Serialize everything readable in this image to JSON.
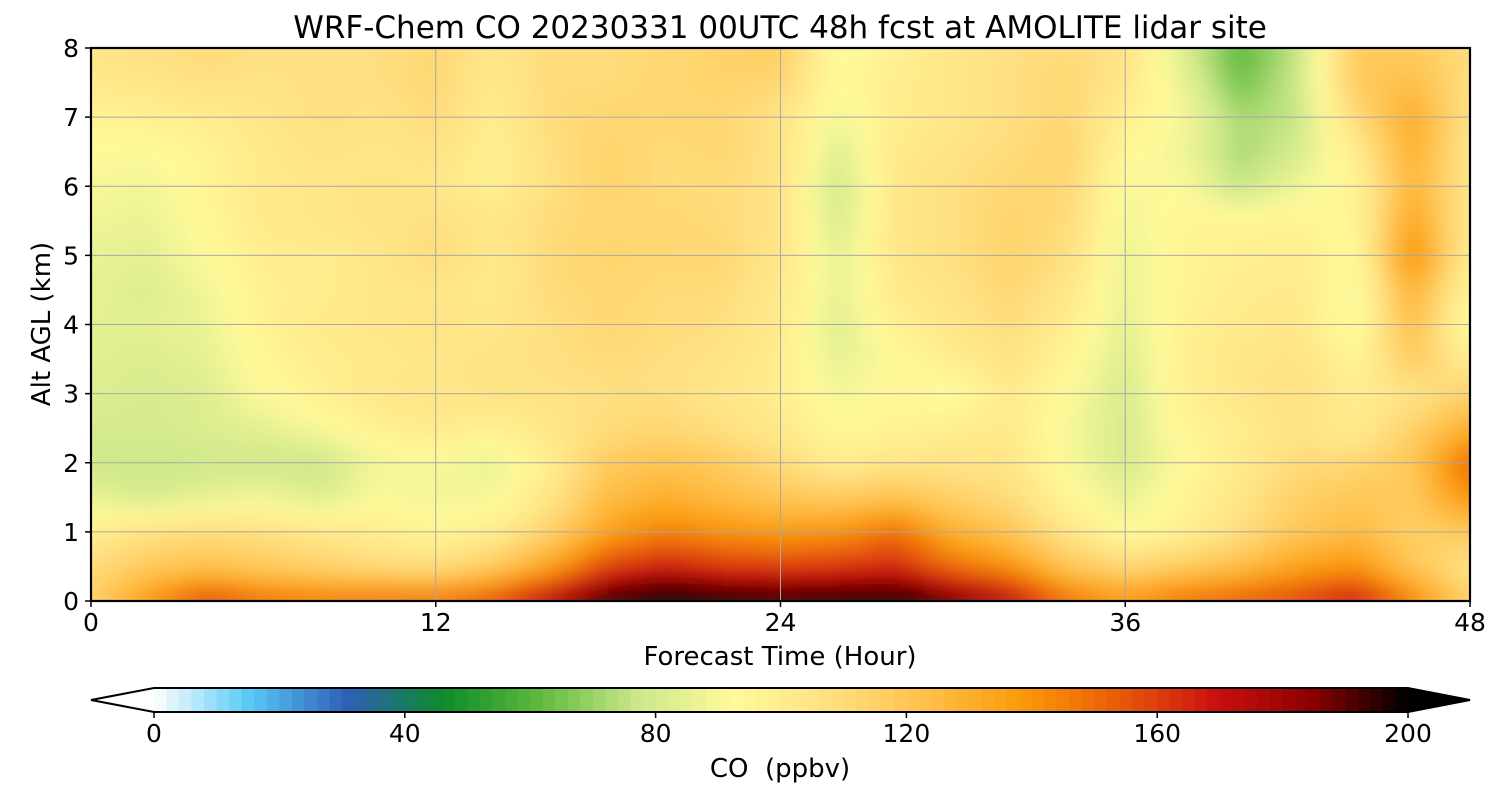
{
  "chart_data": {
    "type": "heatmap",
    "title": "WRF-Chem CO  20230331 00UTC 48h fcst at AMOLITE lidar site",
    "xlabel": "Forecast Time (Hour)",
    "ylabel": "Alt AGL (km)",
    "xlim": [
      0,
      48
    ],
    "ylim": [
      0,
      8
    ],
    "x_ticks": [
      0,
      12,
      24,
      36,
      48
    ],
    "y_ticks": [
      0,
      1,
      2,
      3,
      4,
      5,
      6,
      7,
      8
    ],
    "grid": true,
    "x": [
      0,
      2,
      4,
      6,
      8,
      10,
      12,
      14,
      16,
      18,
      20,
      22,
      24,
      26,
      28,
      30,
      32,
      34,
      36,
      38,
      40,
      42,
      44,
      46,
      48
    ],
    "y": [
      0,
      0.5,
      1,
      1.5,
      2,
      2.5,
      3,
      3.5,
      4,
      4.5,
      5,
      5.5,
      6,
      6.5,
      7,
      7.5,
      8
    ],
    "z": [
      [
        115,
        140,
        160,
        150,
        148,
        150,
        150,
        158,
        178,
        198,
        210,
        205,
        200,
        203,
        205,
        190,
        175,
        150,
        140,
        150,
        155,
        160,
        170,
        145,
        115
      ],
      [
        110,
        118,
        122,
        118,
        114,
        110,
        108,
        118,
        135,
        160,
        168,
        162,
        160,
        162,
        165,
        150,
        140,
        120,
        112,
        118,
        125,
        135,
        140,
        120,
        105
      ],
      [
        100,
        108,
        110,
        108,
        104,
        100,
        96,
        100,
        115,
        135,
        145,
        140,
        138,
        140,
        150,
        130,
        120,
        105,
        92,
        98,
        108,
        120,
        125,
        115,
        118
      ],
      [
        85,
        80,
        85,
        88,
        82,
        92,
        88,
        90,
        105,
        125,
        130,
        125,
        120,
        118,
        122,
        115,
        110,
        95,
        85,
        95,
        105,
        115,
        120,
        118,
        140
      ],
      [
        78,
        77,
        78,
        78,
        77,
        88,
        90,
        85,
        100,
        118,
        122,
        118,
        110,
        100,
        105,
        105,
        105,
        90,
        80,
        92,
        102,
        110,
        112,
        120,
        152
      ],
      [
        80,
        80,
        82,
        84,
        90,
        98,
        102,
        98,
        104,
        110,
        112,
        108,
        102,
        94,
        96,
        100,
        102,
        90,
        80,
        95,
        100,
        106,
        100,
        115,
        130
      ],
      [
        82,
        80,
        82,
        92,
        98,
        104,
        104,
        106,
        106,
        108,
        108,
        104,
        100,
        88,
        95,
        90,
        102,
        92,
        80,
        98,
        104,
        108,
        100,
        105,
        115
      ],
      [
        84,
        82,
        85,
        94,
        100,
        102,
        104,
        106,
        108,
        110,
        108,
        106,
        100,
        85,
        92,
        100,
        106,
        95,
        82,
        98,
        104,
        106,
        95,
        118,
        100
      ],
      [
        84,
        84,
        86,
        98,
        102,
        104,
        106,
        104,
        108,
        112,
        110,
        108,
        102,
        82,
        98,
        104,
        110,
        100,
        84,
        98,
        102,
        104,
        90,
        125,
        88
      ],
      [
        85,
        82,
        88,
        98,
        100,
        104,
        104,
        102,
        110,
        112,
        110,
        110,
        102,
        85,
        102,
        106,
        112,
        104,
        86,
        96,
        100,
        102,
        88,
        130,
        95
      ],
      [
        86,
        84,
        92,
        100,
        100,
        104,
        110,
        102,
        110,
        114,
        112,
        112,
        104,
        84,
        104,
        108,
        114,
        108,
        86,
        96,
        98,
        100,
        92,
        142,
        100
      ],
      [
        88,
        86,
        94,
        102,
        104,
        106,
        108,
        104,
        110,
        112,
        112,
        110,
        106,
        80,
        104,
        108,
        114,
        110,
        88,
        96,
        96,
        96,
        94,
        135,
        102
      ],
      [
        90,
        88,
        96,
        102,
        104,
        106,
        104,
        98,
        108,
        114,
        110,
        110,
        106,
        78,
        104,
        108,
        112,
        112,
        90,
        92,
        76,
        88,
        96,
        128,
        104
      ],
      [
        92,
        92,
        96,
        102,
        106,
        104,
        106,
        98,
        108,
        114,
        110,
        112,
        106,
        82,
        102,
        106,
        110,
        114,
        94,
        88,
        72,
        80,
        100,
        130,
        104
      ],
      [
        96,
        98,
        100,
        104,
        108,
        106,
        110,
        100,
        110,
        112,
        112,
        112,
        106,
        88,
        100,
        104,
        108,
        112,
        98,
        90,
        72,
        76,
        110,
        132,
        106
      ],
      [
        102,
        104,
        108,
        106,
        108,
        108,
        112,
        102,
        110,
        110,
        112,
        114,
        112,
        92,
        100,
        104,
        108,
        112,
        104,
        86,
        64,
        78,
        118,
        124,
        108
      ],
      [
        106,
        108,
        110,
        108,
        108,
        108,
        112,
        104,
        110,
        110,
        112,
        114,
        118,
        90,
        98,
        104,
        108,
        110,
        106,
        82,
        60,
        76,
        118,
        118,
        110
      ]
    ],
    "colorbar": {
      "label": "CO  (ppbv)",
      "min": 0,
      "max": 200,
      "ticks": [
        0,
        40,
        80,
        120,
        160,
        200
      ],
      "extend": "both",
      "colors": [
        "#ffffff",
        "#56c8f5",
        "#2f5fb8",
        "#0c8c2a",
        "#5fba3c",
        "#cbe78a",
        "#fffa9a",
        "#ffe082",
        "#ffc04a",
        "#fb9a0a",
        "#e85c08",
        "#cc1010",
        "#8a0000",
        "#000000"
      ]
    }
  }
}
